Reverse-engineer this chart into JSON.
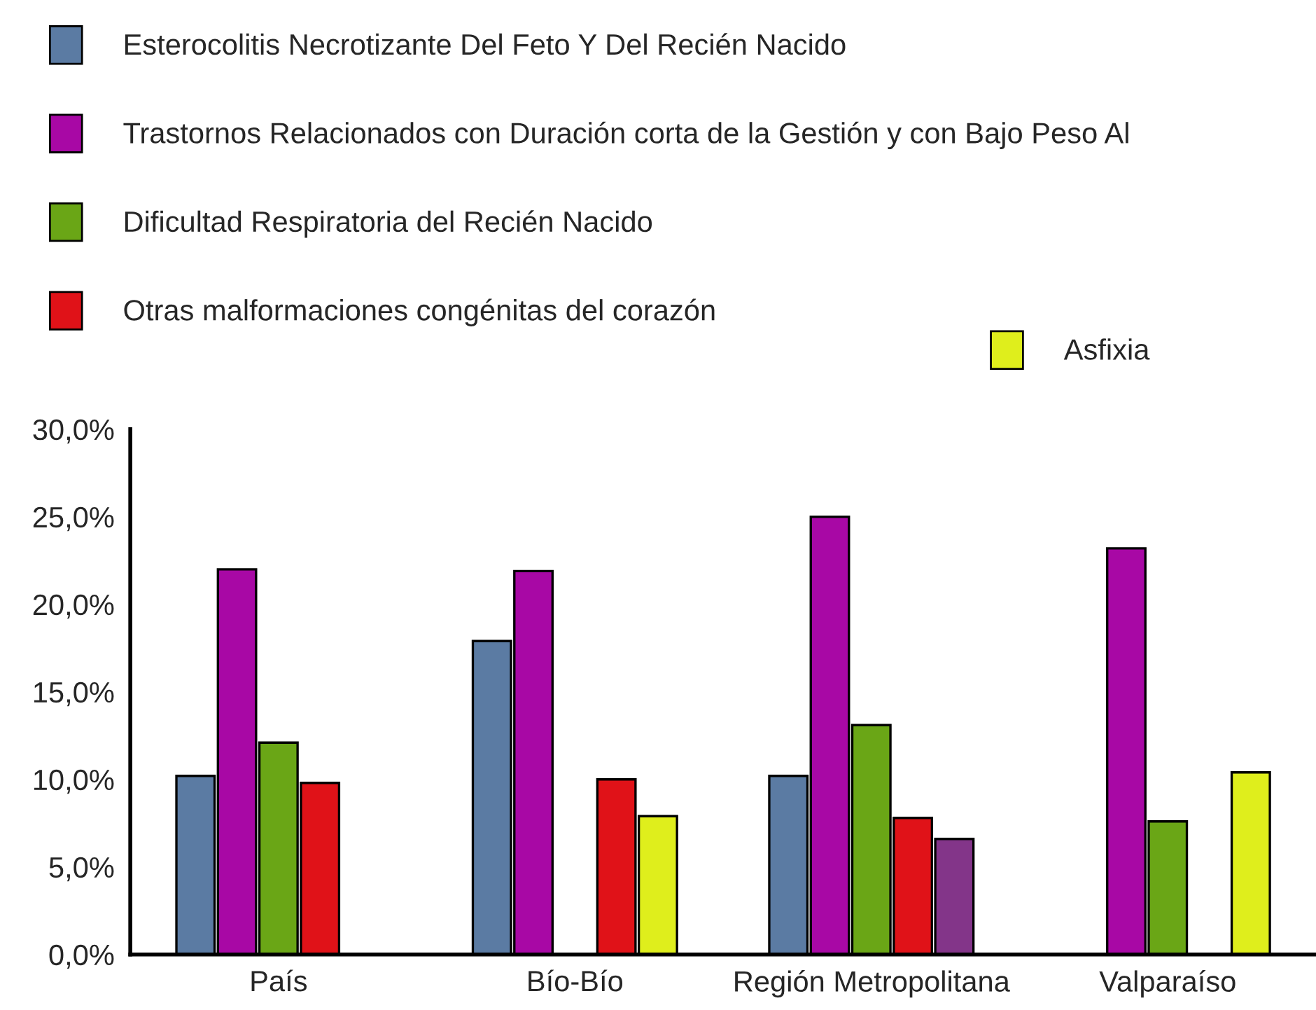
{
  "chart_data": {
    "type": "bar",
    "categories": [
      "País",
      "Bío-Bío",
      "Región Metropolitana",
      "Valparaíso"
    ],
    "series": [
      {
        "name": "Esterocolitis Necrotizante Del Feto Y Del Recién Nacido",
        "color": "#5b7ba3",
        "values": [
          10.2,
          17.9,
          10.2,
          null
        ]
      },
      {
        "name": "Trastornos Relacionados con Duración corta de la Gestión y con Bajo Peso Al",
        "color": "#a808a5",
        "values": [
          22.0,
          21.9,
          25.0,
          23.2
        ]
      },
      {
        "name": "Dificultad Respiratoria del Recién Nacido",
        "color": "#6aa616",
        "values": [
          12.1,
          null,
          13.1,
          7.6
        ]
      },
      {
        "name": "Otras malformaciones congénitas del corazón",
        "color": "#e01218",
        "values": [
          9.8,
          10.0,
          7.8,
          null
        ]
      },
      {
        "name": "Asfixia",
        "color": "#dfee1c",
        "colors": [
          "#dfee1c",
          "#dfee1c",
          "#833589",
          "#dfee1c"
        ],
        "values": [
          null,
          7.9,
          6.6,
          10.4
        ]
      }
    ],
    "ylim": [
      0,
      30
    ],
    "yticks": [
      {
        "value": 0,
        "label": "0,0%"
      },
      {
        "value": 5,
        "label": "5,0%"
      },
      {
        "value": 10,
        "label": "10,0%"
      },
      {
        "value": 15,
        "label": "15,0%"
      },
      {
        "value": 20,
        "label": "20,0%"
      },
      {
        "value": 25,
        "label": "25,0%"
      },
      {
        "value": 30,
        "label": "30,0%"
      }
    ],
    "grid": false,
    "legend": "top"
  }
}
